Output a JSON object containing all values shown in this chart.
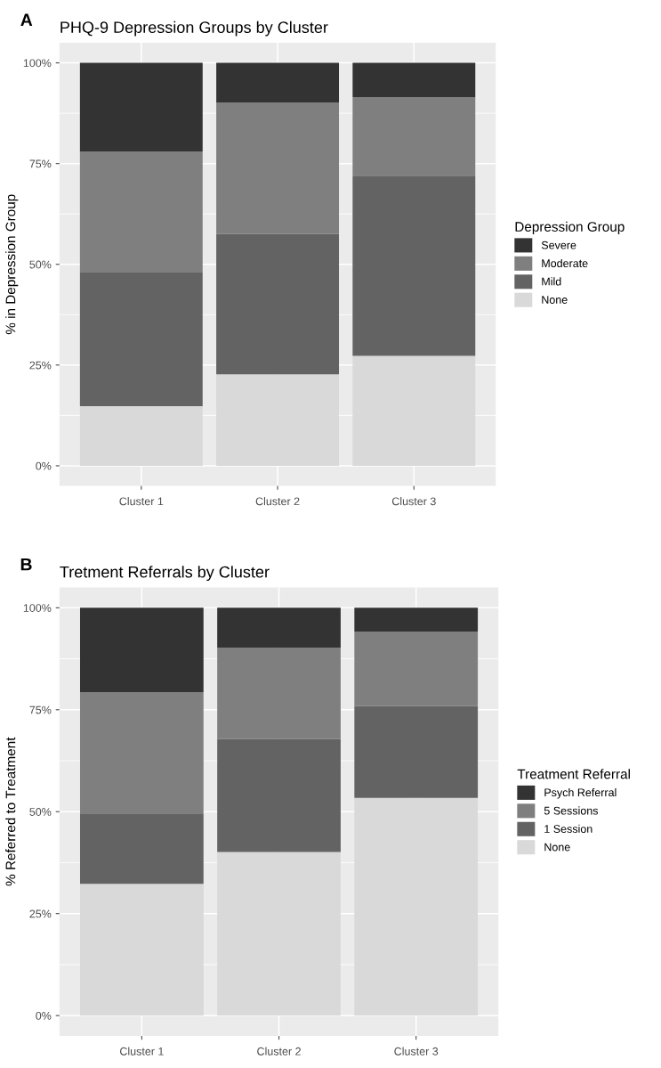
{
  "chart_data": [
    {
      "type": "bar",
      "stacked": true,
      "title": "PHQ-9 Depression Groups by Cluster",
      "ylabel": "% in Depression Group",
      "legend_title": "Depression Group",
      "annotations": [
        "A"
      ],
      "categories": [
        "Cluster 1",
        "Cluster 2",
        "Cluster 3"
      ],
      "series": [
        {
          "name": "None",
          "color": "#d9d9d9",
          "values": [
            14.8,
            22.7,
            27.3
          ]
        },
        {
          "name": "Mild",
          "color": "#636363",
          "values": [
            33.3,
            34.8,
            44.7
          ]
        },
        {
          "name": "Moderate",
          "color": "#7f7f7f",
          "values": [
            29.9,
            32.6,
            19.5
          ]
        },
        {
          "name": "Severe",
          "color": "#333333",
          "values": [
            22.0,
            9.9,
            8.5
          ]
        }
      ],
      "ylim": [
        -5,
        105
      ],
      "yticks": [
        {
          "value": 0,
          "label": "0%"
        },
        {
          "value": 25,
          "label": "25%"
        },
        {
          "value": 50,
          "label": "50%"
        },
        {
          "value": 75,
          "label": "75%"
        },
        {
          "value": 100,
          "label": "100%"
        }
      ],
      "grid": true,
      "legend": "right"
    },
    {
      "type": "bar",
      "stacked": true,
      "title": "Tretment Referrals by Cluster",
      "ylabel": "% Referred to Treatment",
      "legend_title": "Treatment Referral",
      "annotations": [
        "B"
      ],
      "categories": [
        "Cluster 1",
        "Cluster 2",
        "Cluster 3"
      ],
      "series": [
        {
          "name": "None",
          "color": "#d9d9d9",
          "values": [
            32.3,
            40.1,
            53.4
          ]
        },
        {
          "name": "1 Session",
          "color": "#636363",
          "values": [
            17.1,
            27.7,
            22.5
          ]
        },
        {
          "name": "5 Sessions",
          "color": "#7f7f7f",
          "values": [
            29.9,
            22.4,
            18.2
          ]
        },
        {
          "name": "Psych Referral",
          "color": "#333333",
          "values": [
            20.7,
            9.8,
            5.9
          ]
        }
      ],
      "ylim": [
        -5,
        105
      ],
      "yticks": [
        {
          "value": 0,
          "label": "0%"
        },
        {
          "value": 25,
          "label": "25%"
        },
        {
          "value": 50,
          "label": "50%"
        },
        {
          "value": 75,
          "label": "75%"
        },
        {
          "value": 100,
          "label": "100%"
        }
      ],
      "grid": true,
      "legend": "right"
    }
  ]
}
